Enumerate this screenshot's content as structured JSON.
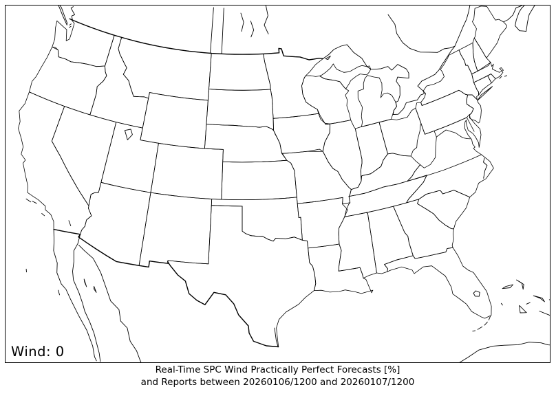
{
  "map": {
    "label": "Wind: 0",
    "hazard": "Wind",
    "report_count": "0",
    "colors": {
      "background": "#ffffff",
      "outline": "#000000",
      "frame": "#000000",
      "text": "#000000"
    }
  },
  "caption": {
    "line1": "Real-Time SPC Wind Practically Perfect Forecasts [%]",
    "line2": "and Reports between 20260106/1200 and 20260107/1200",
    "product": "Real-Time SPC Wind Practically Perfect Forecasts",
    "units": "%",
    "start_datetime": "20260106/1200",
    "end_datetime": "20260107/1200"
  }
}
